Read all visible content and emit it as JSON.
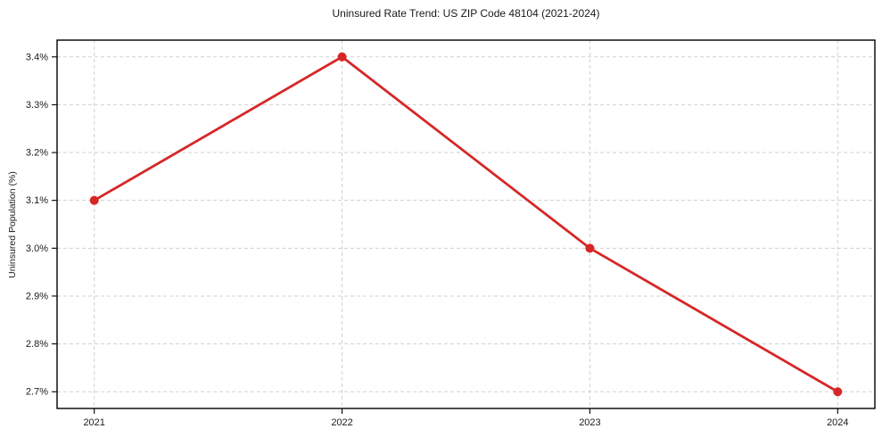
{
  "chart_data": {
    "type": "line",
    "title": "Uninsured Rate Trend: US ZIP Code 48104 (2021-2024)",
    "xlabel": "",
    "ylabel": "Uninsured Population (%)",
    "x": [
      2021,
      2022,
      2023,
      2024
    ],
    "categories": [
      "2021",
      "2022",
      "2023",
      "2024"
    ],
    "series": [
      {
        "name": "Uninsured Population (%)",
        "values": [
          3.1,
          3.4,
          3.0,
          2.7
        ]
      }
    ],
    "xlim": [
      2020.85,
      2024.15
    ],
    "ylim": [
      2.665,
      3.435
    ],
    "xticks": [
      2021,
      2022,
      2023,
      2024
    ],
    "xtick_labels": [
      "2021",
      "2022",
      "2023",
      "2024"
    ],
    "yticks": [
      2.7,
      2.8,
      2.9,
      3.0,
      3.1,
      3.2,
      3.3,
      3.4
    ],
    "ytick_labels": [
      "2.7%",
      "2.8%",
      "2.9%",
      "3.0%",
      "3.1%",
      "3.2%",
      "3.3%",
      "3.4%"
    ],
    "grid": true,
    "legend_position": "none",
    "line_color": "#d62728",
    "marker": "circle",
    "marker_color": "#d62728",
    "grid_color": "#cccccc",
    "axis_color": "#000000",
    "background_color": "#ffffff"
  }
}
